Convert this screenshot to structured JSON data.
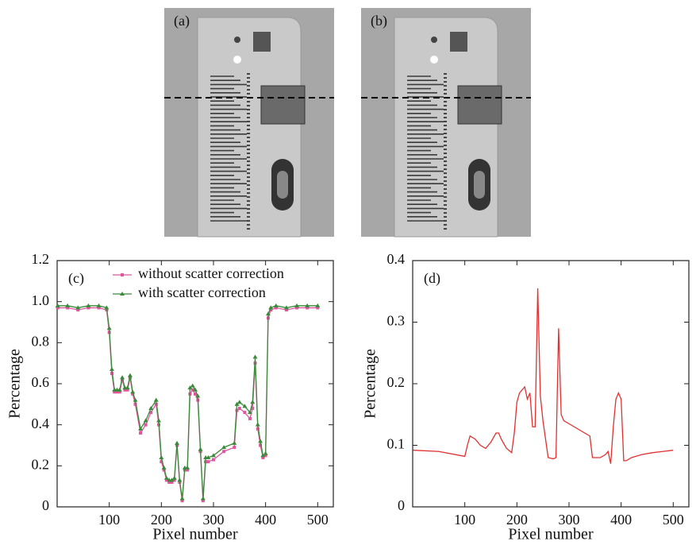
{
  "images": [
    {
      "label": "(a)"
    },
    {
      "label": "(b)"
    }
  ],
  "chart_data": [
    {
      "type": "line",
      "annotation": "(c)",
      "xlabel": "Pixel number",
      "ylabel": "Percentage",
      "xlim": [
        0,
        530
      ],
      "xticks": [
        100,
        200,
        300,
        400,
        500
      ],
      "ylim": [
        0,
        1.2
      ],
      "yticks": [
        0,
        0.2,
        0.4,
        0.6,
        0.8,
        {
          "value": 1,
          "label": "1.0"
        },
        1.2
      ],
      "legend": "upper center",
      "x": [
        1,
        20,
        40,
        60,
        80,
        95,
        100,
        105,
        110,
        115,
        120,
        125,
        130,
        135,
        140,
        145,
        150,
        160,
        170,
        180,
        190,
        195,
        200,
        205,
        210,
        215,
        220,
        225,
        230,
        235,
        240,
        245,
        250,
        255,
        260,
        265,
        270,
        275,
        280,
        285,
        290,
        300,
        320,
        340,
        345,
        350,
        360,
        370,
        375,
        380,
        385,
        390,
        395,
        400,
        405,
        410,
        420,
        440,
        460,
        480,
        500
      ],
      "series": [
        {
          "name": "without scatter correction",
          "color": "#e0559e",
          "marker": "square",
          "values": [
            0.97,
            0.97,
            0.96,
            0.97,
            0.97,
            0.96,
            0.85,
            0.65,
            0.56,
            0.56,
            0.56,
            0.62,
            0.57,
            0.57,
            0.63,
            0.55,
            0.5,
            0.36,
            0.4,
            0.46,
            0.5,
            0.4,
            0.22,
            0.18,
            0.13,
            0.12,
            0.12,
            0.13,
            0.3,
            0.12,
            0.03,
            0.18,
            0.18,
            0.55,
            0.57,
            0.55,
            0.52,
            0.27,
            0.03,
            0.22,
            0.22,
            0.23,
            0.27,
            0.29,
            0.47,
            0.48,
            0.46,
            0.43,
            0.48,
            0.7,
            0.38,
            0.3,
            0.24,
            0.25,
            0.92,
            0.96,
            0.97,
            0.96,
            0.97,
            0.97,
            0.97
          ]
        },
        {
          "name": "with scatter correction",
          "color": "#3a8a3a",
          "marker": "triangle",
          "values": [
            0.98,
            0.98,
            0.97,
            0.98,
            0.98,
            0.97,
            0.87,
            0.67,
            0.57,
            0.57,
            0.57,
            0.63,
            0.58,
            0.58,
            0.64,
            0.56,
            0.52,
            0.38,
            0.42,
            0.48,
            0.52,
            0.42,
            0.24,
            0.19,
            0.14,
            0.13,
            0.13,
            0.14,
            0.31,
            0.13,
            0.04,
            0.19,
            0.19,
            0.58,
            0.59,
            0.57,
            0.54,
            0.28,
            0.04,
            0.24,
            0.24,
            0.25,
            0.29,
            0.31,
            0.5,
            0.51,
            0.49,
            0.46,
            0.51,
            0.73,
            0.4,
            0.32,
            0.25,
            0.26,
            0.94,
            0.97,
            0.98,
            0.97,
            0.98,
            0.98,
            0.98
          ]
        }
      ]
    },
    {
      "type": "line",
      "annotation": "(d)",
      "xlabel": "Pixel number",
      "ylabel": "Percentage",
      "xlim": [
        0,
        530
      ],
      "xticks": [
        100,
        200,
        300,
        400,
        500
      ],
      "ylim": [
        0,
        0.4
      ],
      "yticks": [
        0,
        0.1,
        0.2,
        0.3,
        0.4
      ],
      "x": [
        1,
        50,
        100,
        105,
        110,
        120,
        130,
        140,
        150,
        160,
        165,
        170,
        180,
        190,
        195,
        200,
        205,
        210,
        215,
        220,
        225,
        230,
        235,
        240,
        245,
        250,
        260,
        270,
        275,
        280,
        285,
        290,
        300,
        320,
        340,
        345,
        350,
        360,
        370,
        375,
        380,
        385,
        390,
        395,
        400,
        405,
        410,
        420,
        440,
        460,
        480,
        500
      ],
      "series": [
        {
          "color": "#e03030",
          "values": [
            0.092,
            0.09,
            0.082,
            0.1,
            0.115,
            0.11,
            0.1,
            0.095,
            0.105,
            0.12,
            0.12,
            0.11,
            0.095,
            0.088,
            0.12,
            0.17,
            0.185,
            0.19,
            0.195,
            0.175,
            0.185,
            0.13,
            0.13,
            0.355,
            0.18,
            0.14,
            0.08,
            0.078,
            0.08,
            0.29,
            0.15,
            0.14,
            0.135,
            0.125,
            0.115,
            0.08,
            0.08,
            0.08,
            0.085,
            0.09,
            0.07,
            0.13,
            0.175,
            0.185,
            0.175,
            0.075,
            0.075,
            0.08,
            0.085,
            0.088,
            0.09,
            0.092
          ]
        }
      ]
    }
  ]
}
